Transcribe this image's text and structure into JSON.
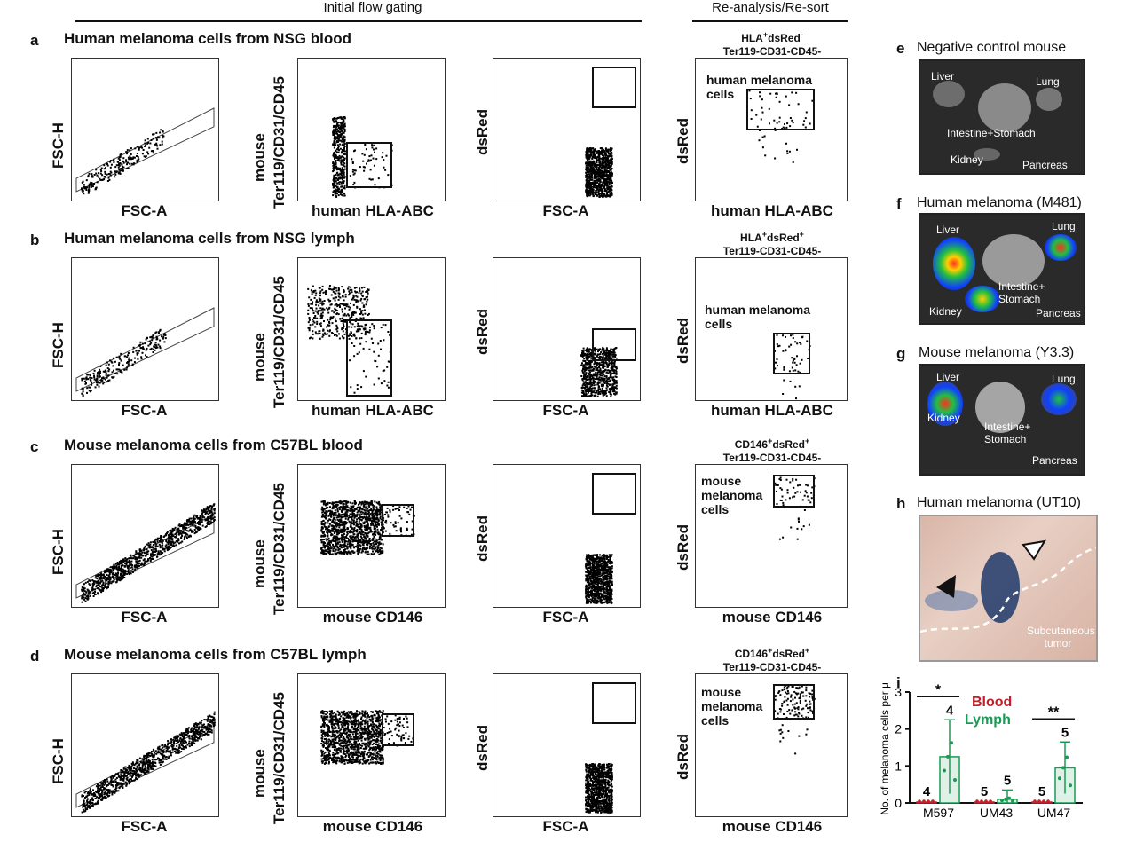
{
  "headers": {
    "initial": "Initial flow gating",
    "reanalysis": "Re-analysis/Re-sort"
  },
  "rows": [
    {
      "letter": "a",
      "title": "Human melanoma cells from NSG blood",
      "p1": {
        "y": "FSC-H",
        "x": "FSC-A"
      },
      "p2": {
        "y1": "mouse",
        "y2": "Ter119/CD31/CD45",
        "x": "human HLA-ABC"
      },
      "p3": {
        "y": "dsRed",
        "x": "FSC-A"
      },
      "p4": {
        "g1a": "HLA",
        "g1b": "+",
        "g1c": "dsRed",
        "g1d": "-",
        "g2": "Ter119-CD31-CD45-",
        "y": "dsRed",
        "x": "human HLA-ABC",
        "gate_label": "human melanoma cells"
      }
    },
    {
      "letter": "b",
      "title": "Human melanoma cells from NSG lymph",
      "p1": {
        "y": "FSC-H",
        "x": "FSC-A"
      },
      "p2": {
        "y1": "mouse",
        "y2": "Ter119/CD31/CD45",
        "x": "human HLA-ABC"
      },
      "p3": {
        "y": "dsRed",
        "x": "FSC-A"
      },
      "p4": {
        "g1a": "HLA",
        "g1b": "+",
        "g1c": "dsRed",
        "g1d": "+",
        "g2": "Ter119-CD31-CD45-",
        "y": "dsRed",
        "x": "human HLA-ABC",
        "gate_label": "human melanoma cells"
      }
    },
    {
      "letter": "c",
      "title": "Mouse melanoma cells from C57BL blood",
      "p1": {
        "y": "FSC-H",
        "x": "FSC-A"
      },
      "p2": {
        "y1": "mouse",
        "y2": "Ter119/CD31/CD45",
        "x": "mouse CD146"
      },
      "p3": {
        "y": "dsRed",
        "x": "FSC-A"
      },
      "p4": {
        "g1a": "CD146",
        "g1b": "+",
        "g1c": "dsRed",
        "g1d": "+",
        "g2": "Ter119-CD31-CD45-",
        "y": "dsRed",
        "x": "mouse CD146",
        "gate_label": "mouse melanoma cells"
      }
    },
    {
      "letter": "d",
      "title": "Mouse melanoma cells from C57BL lymph",
      "p1": {
        "y": "FSC-H",
        "x": "FSC-A"
      },
      "p2": {
        "y1": "mouse",
        "y2": "Ter119/CD31/CD45",
        "x": "mouse CD146"
      },
      "p3": {
        "y": "dsRed",
        "x": "FSC-A"
      },
      "p4": {
        "g1a": "CD146",
        "g1b": "+",
        "g1c": "dsRed",
        "g1d": "+",
        "g2": "Ter119-CD31-CD45-",
        "y": "dsRed",
        "x": "mouse CD146",
        "gate_label": "mouse melanoma cells"
      }
    }
  ],
  "panel_e": {
    "letter": "e",
    "title": "Negative control mouse",
    "organs": {
      "liver": "Liver",
      "lung": "Lung",
      "intestine": "Intestine+Stomach",
      "kidney": "Kidney",
      "pancreas": "Pancreas"
    }
  },
  "panel_f": {
    "letter": "f",
    "title": "Human melanoma (M481)",
    "organs": {
      "liver": "Liver",
      "lung": "Lung",
      "intestine": "Intestine+ Stomach",
      "kidney": "Kidney",
      "pancreas": "Pancreas"
    }
  },
  "panel_g": {
    "letter": "g",
    "title": "Mouse melanoma (Y3.3)",
    "organs": {
      "liver": "Liver",
      "lung": "Lung",
      "intestine": "Intestine+ Stomach",
      "kidney": "Kidney",
      "pancreas": "Pancreas"
    }
  },
  "panel_h": {
    "letter": "h",
    "title": "Human melanoma (UT10)",
    "annotation": "Subcutaneous tumor"
  },
  "panel_i": {
    "letter": "i"
  },
  "chart_data": {
    "type": "bar",
    "title": "",
    "ylabel": "No. of melanoma cells per µl",
    "ylim": [
      0,
      3
    ],
    "yticks": [
      "0",
      "1",
      "2",
      "3"
    ],
    "categories": [
      "M597",
      "UM43",
      "UM47"
    ],
    "legend": [
      "Blood",
      "Lymph"
    ],
    "colors": {
      "blood": "#c0202a",
      "lymph": "#1a9a55"
    },
    "series": [
      {
        "name": "Blood",
        "values": [
          0,
          0,
          0
        ],
        "n": [
          "4",
          "5",
          "5"
        ]
      },
      {
        "name": "Lymph",
        "values": [
          1.25,
          0.1,
          0.95
        ],
        "n": [
          "4",
          "5",
          "5"
        ],
        "err": [
          1.0,
          0.25,
          0.7
        ]
      }
    ],
    "significance": [
      "*",
      "",
      "**"
    ]
  }
}
